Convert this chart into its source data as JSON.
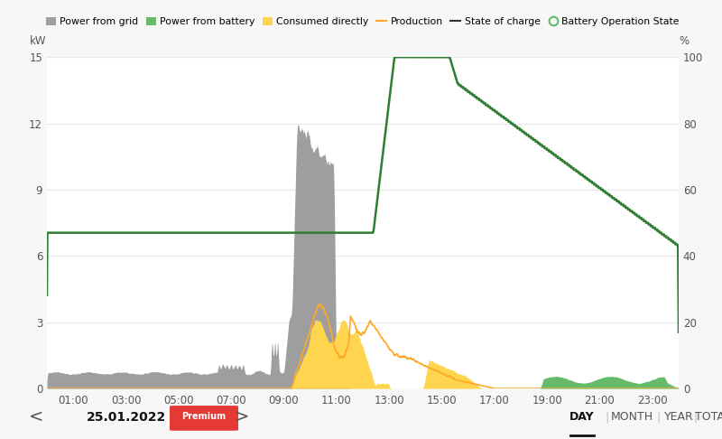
{
  "ylabel_left": "kW",
  "ylabel_right": "%",
  "x_ticks": [
    "01:00",
    "03:00",
    "05:00",
    "07:00",
    "09:00",
    "11:00",
    "13:00",
    "15:00",
    "17:00",
    "19:00",
    "21:00",
    "23:00"
  ],
  "y_left_ticks": [
    0,
    3,
    6,
    9,
    12,
    15
  ],
  "y_right_ticks": [
    0,
    20,
    40,
    60,
    80,
    100
  ],
  "ylim_left": [
    0,
    15
  ],
  "ylim_right": [
    0,
    100
  ],
  "background_color": "#f7f7f7",
  "plot_bg_color": "#ffffff",
  "grid_color": "#e8e8e8",
  "gray_color": "#9e9e9e",
  "green_fill_color": "#66bb6a",
  "yellow_fill_color": "#ffd54f",
  "production_line_color": "#ffa726",
  "soc_line_color": "#2e7d32",
  "footer_text": "25.01.2022",
  "premium_color": "#e53935",
  "nav_color": "#555555"
}
